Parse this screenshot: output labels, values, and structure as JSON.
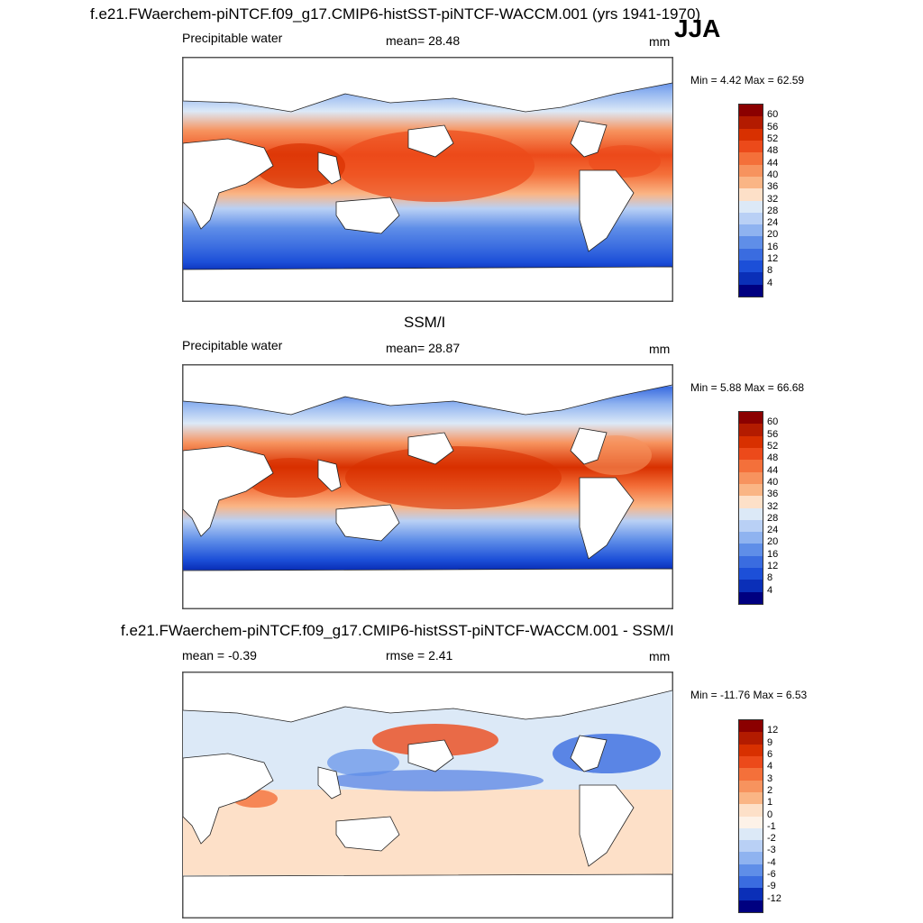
{
  "header": {
    "title": "f.e21.FWaerchem-piNTCF.f09_g17.CMIP6-histSST-piNTCF-WACCM.001 (yrs 1941-1970)",
    "season": "JJA"
  },
  "panels": [
    {
      "id": "model",
      "title": "",
      "left_label": "Precipitable water",
      "center_label": "mean=  28.48",
      "units": "mm",
      "minmax": "Min =   4.42 Max =  62.59",
      "colorbar_labels": [
        "60",
        "56",
        "52",
        "48",
        "44",
        "40",
        "36",
        "32",
        "28",
        "24",
        "20",
        "16",
        "12",
        "8",
        "4"
      ],
      "colorbar_colors": [
        "#8b0000",
        "#b31b00",
        "#d83000",
        "#ec4a1a",
        "#f4703a",
        "#f7935e",
        "#fab585",
        "#fde0c8",
        "#dce9f7",
        "#b9d0f5",
        "#8fb3f0",
        "#5f8ee8",
        "#3a6ce0",
        "#1c4fd8",
        "#0a2fb8",
        "#000080"
      ]
    },
    {
      "id": "obs",
      "title": "SSM/I",
      "left_label": "Precipitable water",
      "center_label": "mean=  28.87",
      "units": "mm",
      "minmax": "Min =   5.88 Max =  66.68",
      "colorbar_labels": [
        "60",
        "56",
        "52",
        "48",
        "44",
        "40",
        "36",
        "32",
        "28",
        "24",
        "20",
        "16",
        "12",
        "8",
        "4"
      ],
      "colorbar_colors": [
        "#8b0000",
        "#b31b00",
        "#d83000",
        "#ec4a1a",
        "#f4703a",
        "#f7935e",
        "#fab585",
        "#fde0c8",
        "#dce9f7",
        "#b9d0f5",
        "#8fb3f0",
        "#5f8ee8",
        "#3a6ce0",
        "#1c4fd8",
        "#0a2fb8",
        "#000080"
      ]
    },
    {
      "id": "diff",
      "title": "f.e21.FWaerchem-piNTCF.f09_g17.CMIP6-histSST-piNTCF-WACCM.001 - SSM/I",
      "left_label": "mean =  -0.39",
      "center_label": "rmse =   2.41",
      "units": "mm",
      "minmax": "Min = -11.76 Max =   6.53",
      "colorbar_labels": [
        "12",
        "9",
        "6",
        "4",
        "3",
        "2",
        "1",
        "0",
        "-1",
        "-2",
        "-3",
        "-4",
        "-6",
        "-9",
        "-12"
      ],
      "colorbar_colors": [
        "#8b0000",
        "#b31b00",
        "#d83000",
        "#ec4a1a",
        "#f4703a",
        "#f7935e",
        "#fab585",
        "#fde0c8",
        "#fdf2e8",
        "#dce9f7",
        "#b9d0f5",
        "#8fb3f0",
        "#5f8ee8",
        "#3a6ce0",
        "#0a2fb8",
        "#000080"
      ]
    }
  ]
}
